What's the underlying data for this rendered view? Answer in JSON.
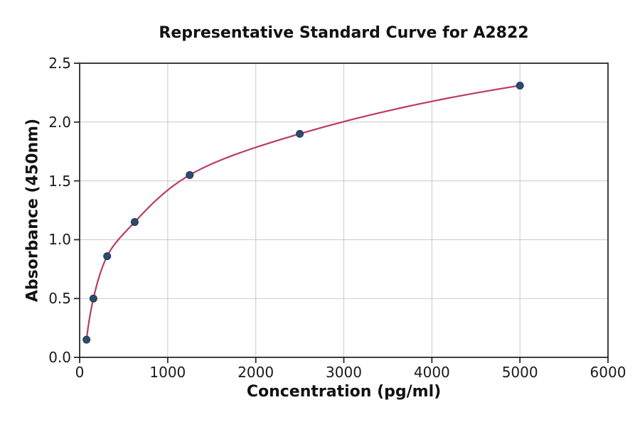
{
  "chart_data": {
    "type": "scatter",
    "title": "Representative Standard Curve for A2822",
    "xlabel": "Concentration (pg/ml)",
    "ylabel": "Absorbance (450nm)",
    "x": [
      78.1,
      156.3,
      312.5,
      625,
      1250,
      2500,
      5000
    ],
    "y": [
      0.15,
      0.5,
      0.86,
      1.15,
      1.55,
      1.9,
      2.31
    ],
    "fit_curve": "smooth saturating fit through all points, drawn from first to last point",
    "xlim": [
      0,
      6000
    ],
    "ylim": [
      0,
      2.5
    ],
    "x_ticks": [
      0,
      1000,
      2000,
      3000,
      4000,
      5000,
      6000
    ],
    "x_tick_labels": [
      "0",
      "1000",
      "2000",
      "3000",
      "4000",
      "5000",
      "6000"
    ],
    "y_ticks": [
      0,
      0.5,
      1.0,
      1.5,
      2.0,
      2.5
    ],
    "y_tick_labels": [
      "0.0",
      "0.5",
      "1.0",
      "1.5",
      "2.0",
      "2.5"
    ],
    "grid": true,
    "legend": "none",
    "colors": {
      "curve": "#bb3a66",
      "marker_fill": "#2d4b6e",
      "marker_edge": "#20394f",
      "grid": "#c9c9c9",
      "spine": "#2a2a2a",
      "tick": "#2a2a2a",
      "text": "#111111",
      "background": "#ffffff"
    }
  }
}
